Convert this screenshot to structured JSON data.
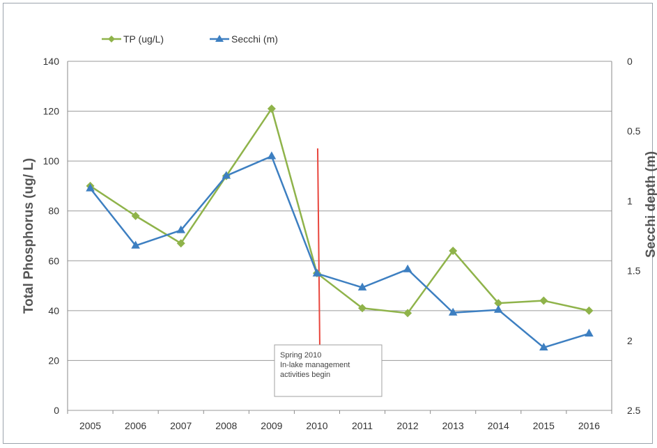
{
  "chart_data": {
    "type": "line",
    "categories": [
      "2005",
      "2006",
      "2007",
      "2008",
      "2009",
      "2010",
      "2011",
      "2012",
      "2013",
      "2014",
      "2015",
      "2016"
    ],
    "series": [
      {
        "name": "TP (ug/L)",
        "axis": "left",
        "color": "#8fb34a",
        "marker": "diamond",
        "values": [
          90,
          78,
          67,
          94,
          121,
          55,
          41,
          39,
          64,
          43,
          44,
          40
        ]
      },
      {
        "name": "Secchi (m)",
        "axis": "right",
        "color": "#3d7fc1",
        "marker": "triangle",
        "values": [
          0.91,
          1.32,
          1.21,
          0.82,
          0.68,
          1.52,
          1.62,
          1.49,
          1.8,
          1.78,
          2.05,
          1.95
        ]
      }
    ],
    "ylabel": "Total Phosphorus (ug/ L)",
    "ylabel_right": "Secchi depth (m)",
    "ylim": [
      0,
      140
    ],
    "yticks": [
      "0",
      "20",
      "40",
      "60",
      "80",
      "100",
      "120",
      "140"
    ],
    "y2lim": [
      0,
      2.5
    ],
    "y2_inverted": true,
    "y2ticks": [
      "0",
      "0.5",
      "1",
      "1.5",
      "2",
      "2.5"
    ],
    "grid": true,
    "legend_position": "top-left",
    "annotation": {
      "x_category": "2010",
      "line_color": "#e8453c",
      "lines": [
        "Spring 2010",
        "In-lake management",
        "activities begin"
      ]
    }
  }
}
